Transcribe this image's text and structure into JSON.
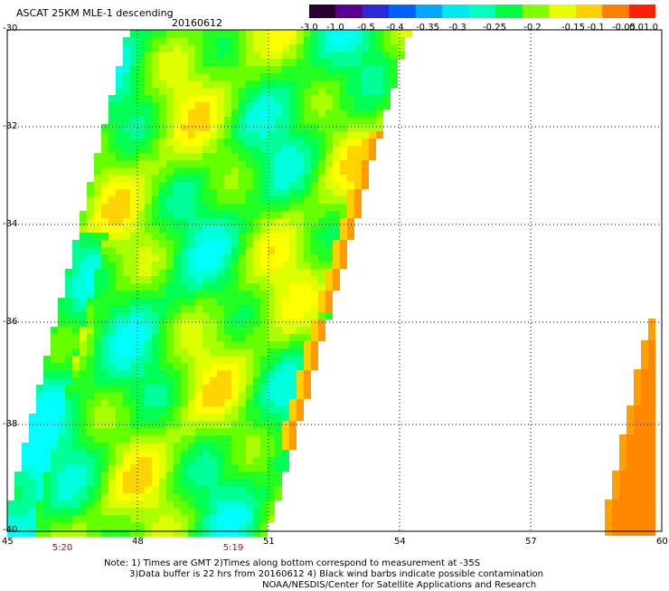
{
  "header": {
    "title": "ASCAT 25KM MLE-1 descending",
    "date": "20160612"
  },
  "colorbar": {
    "labels": [
      "-3.0",
      "-1.0",
      "-0.5",
      "-0.4",
      "-0.35",
      "-0.3",
      "-0.25",
      "-0.2",
      "-0.15",
      "-0.1",
      "-0.05",
      "0.0",
      "1.0"
    ],
    "colors": [
      "#2a0030",
      "#5a0090",
      "#2a2ad8",
      "#0060ff",
      "#00a8ff",
      "#00e8f0",
      "#00ffc0",
      "#00ff40",
      "#80ff00",
      "#e8ff00",
      "#ffd000",
      "#ff8000",
      "#ff2000"
    ]
  },
  "map": {
    "lat_labels": [
      "-30",
      "-32",
      "-34",
      "-36",
      "-38",
      "-40"
    ],
    "lon_labels": [
      "45",
      "48",
      "51",
      "54",
      "57",
      "60"
    ],
    "time_labels": [
      "5:20",
      "5:19"
    ]
  },
  "notes": {
    "line1": "Note: 1) Times are GMT 2)Times along bottom correspond to measurement at -35S",
    "line2": "3)Data buffer is 22 hrs from 20160612 4) Black wind barbs indicate possible contamination",
    "line3": "NOAA/NESDIS/Center for Satellite Applications and Research"
  }
}
